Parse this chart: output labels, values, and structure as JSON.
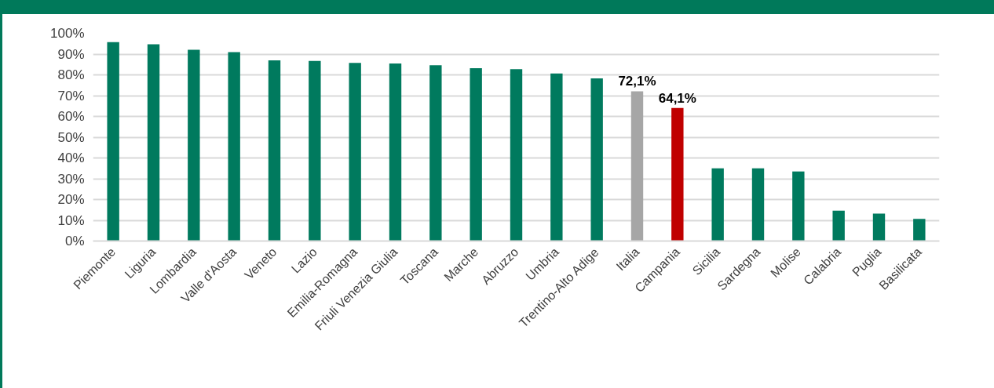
{
  "chart_data": {
    "type": "bar",
    "categories": [
      "Piemonte",
      "Liguria",
      "Lombardia",
      "Valle d'Aosta",
      "Veneto",
      "Lazio",
      "Emilia-Romagna",
      "Friuli Venezia Giulia",
      "Toscana",
      "Marche",
      "Abruzzo",
      "Umbria",
      "Trentino-Alto Adige",
      "Italia",
      "Campania",
      "Sicilia",
      "Sardegna",
      "Molise",
      "Calabria",
      "Puglia",
      "Basilicata"
    ],
    "values": [
      95.8,
      94.7,
      92.1,
      90.9,
      87.0,
      86.7,
      85.8,
      85.5,
      84.6,
      83.2,
      82.7,
      80.7,
      78.3,
      72.1,
      64.1,
      35.0,
      35.0,
      33.5,
      14.6,
      13.2,
      10.7
    ],
    "colors": [
      "#007a5e",
      "#007a5e",
      "#007a5e",
      "#007a5e",
      "#007a5e",
      "#007a5e",
      "#007a5e",
      "#007a5e",
      "#007a5e",
      "#007a5e",
      "#007a5e",
      "#007a5e",
      "#007a5e",
      "#a6a6a6",
      "#c00000",
      "#007a5e",
      "#007a5e",
      "#007a5e",
      "#007a5e",
      "#007a5e",
      "#007a5e"
    ],
    "value_labels": [
      null,
      null,
      null,
      null,
      null,
      null,
      null,
      null,
      null,
      null,
      null,
      null,
      null,
      "72,1%",
      "64,1%",
      null,
      null,
      null,
      null,
      null,
      null
    ],
    "ylim": [
      0,
      100
    ],
    "yticks": [
      {
        "value": 0,
        "label": "0%"
      },
      {
        "value": 10,
        "label": "10%"
      },
      {
        "value": 20,
        "label": "20%"
      },
      {
        "value": 30,
        "label": "30%"
      },
      {
        "value": 40,
        "label": "40%"
      },
      {
        "value": 50,
        "label": "50%"
      },
      {
        "value": 60,
        "label": "60%"
      },
      {
        "value": 70,
        "label": "70%"
      },
      {
        "value": 80,
        "label": "80%"
      },
      {
        "value": 90,
        "label": "90%"
      },
      {
        "value": 100,
        "label": "100%"
      }
    ],
    "grid": "y"
  }
}
